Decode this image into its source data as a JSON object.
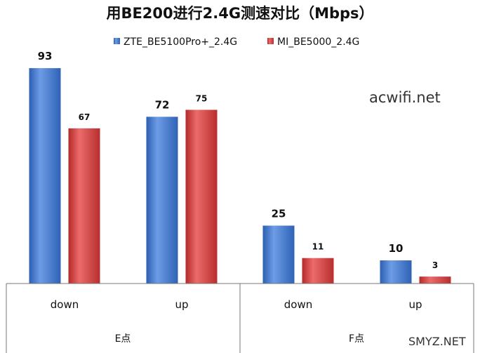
{
  "chart_data": {
    "type": "bar",
    "title": "用BE200进行2.4G测速对比（Mbps）",
    "categories": [
      "down",
      "up",
      "down",
      "up"
    ],
    "groups": [
      {
        "label": "E点",
        "categories": [
          "down",
          "up"
        ]
      },
      {
        "label": "F点",
        "categories": [
          "down",
          "up"
        ]
      }
    ],
    "series": [
      {
        "name": "ZTE_BE5100Pro+_2.4G",
        "color": "#4a7fd0",
        "values": [
          93,
          72,
          25,
          10
        ]
      },
      {
        "name": "MI_BE5000_2.4G",
        "color": "#d84a4a",
        "values": [
          67,
          75,
          11,
          3
        ]
      }
    ],
    "ylim": [
      0,
      100
    ],
    "legend": "top",
    "grid": false
  },
  "watermarks": {
    "site": "acwifi.net",
    "corner": "SMYZ.NET"
  }
}
